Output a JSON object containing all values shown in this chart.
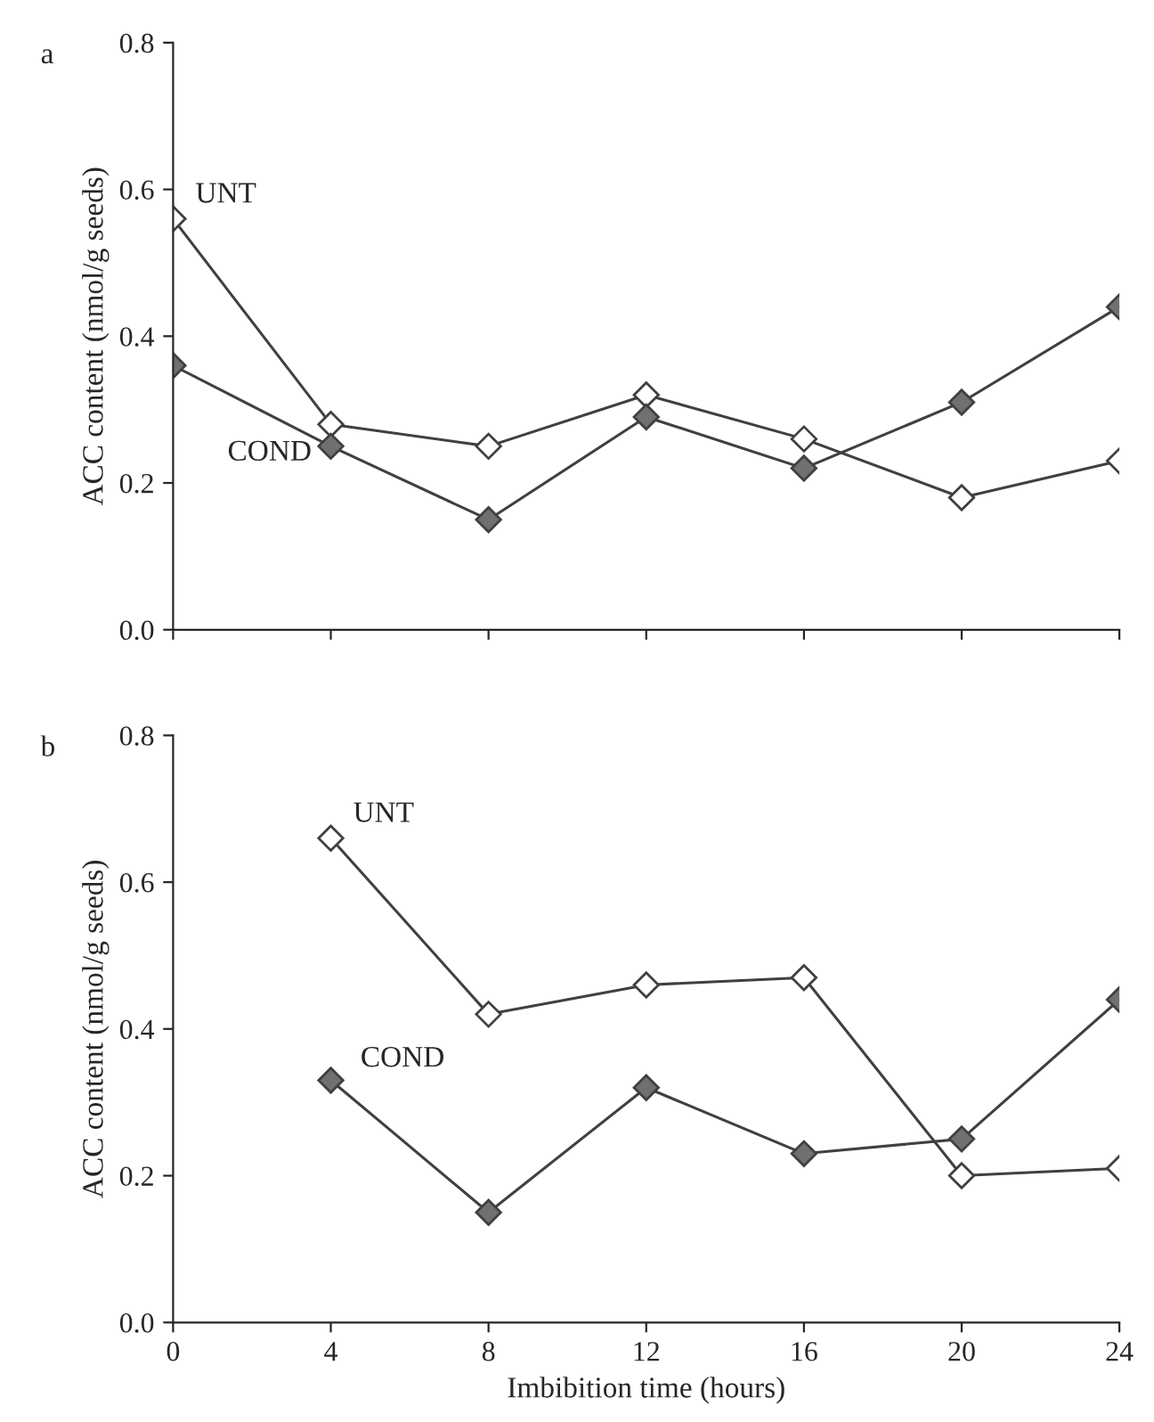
{
  "chart_data": [
    {
      "type": "line",
      "annotations": [
        "a"
      ],
      "ylabel": "ACC content (nmol/g seeds)",
      "x": [
        0,
        4,
        8,
        12,
        16,
        20,
        24
      ],
      "xlim": [
        0,
        24
      ],
      "xticks": [
        0,
        4,
        8,
        12,
        16,
        20,
        24
      ],
      "ylim": [
        0,
        0.8
      ],
      "yticks": [
        {
          "value": 0,
          "label": "0.0"
        },
        {
          "value": 0.2,
          "label": "0.2"
        },
        {
          "value": 0.4,
          "label": "0.4"
        },
        {
          "value": 0.6,
          "label": "0.6"
        },
        {
          "value": 0.8,
          "label": "0.8"
        }
      ],
      "tick_labels": "y",
      "marker": "diamond",
      "line_style": "solid",
      "grid": false,
      "legend": false,
      "series": [
        {
          "name": "UNT",
          "color": "#ffffff",
          "values": [
            0.56,
            0.28,
            0.25,
            0.32,
            0.26,
            0.18,
            0.23
          ]
        },
        {
          "name": "COND",
          "color": "#707070",
          "values": [
            0.36,
            0.25,
            0.15,
            0.29,
            0.22,
            0.31,
            0.44
          ]
        }
      ]
    },
    {
      "type": "line",
      "annotations": [
        "b"
      ],
      "ylabel": "ACC content (nmol/g seeds)",
      "xlabel": "Imbibition time (hours)",
      "x": [
        4,
        8,
        12,
        16,
        20,
        24
      ],
      "xlim": [
        0,
        24
      ],
      "xticks": [
        0,
        4,
        8,
        12,
        16,
        20,
        24
      ],
      "ylim": [
        0,
        0.8
      ],
      "yticks": [
        {
          "value": 0,
          "label": "0.0"
        },
        {
          "value": 0.2,
          "label": "0.2"
        },
        {
          "value": 0.4,
          "label": "0.4"
        },
        {
          "value": 0.6,
          "label": "0.6"
        },
        {
          "value": 0.8,
          "label": "0.8"
        }
      ],
      "marker": "diamond",
      "line_style": "solid",
      "grid": false,
      "legend": false,
      "series": [
        {
          "name": "UNT",
          "color": "#ffffff",
          "values": [
            0.66,
            0.42,
            0.46,
            0.47,
            0.2,
            0.21
          ]
        },
        {
          "name": "COND",
          "color": "#707070",
          "values": [
            0.33,
            0.15,
            0.32,
            0.23,
            0.25,
            0.44
          ]
        }
      ]
    }
  ]
}
